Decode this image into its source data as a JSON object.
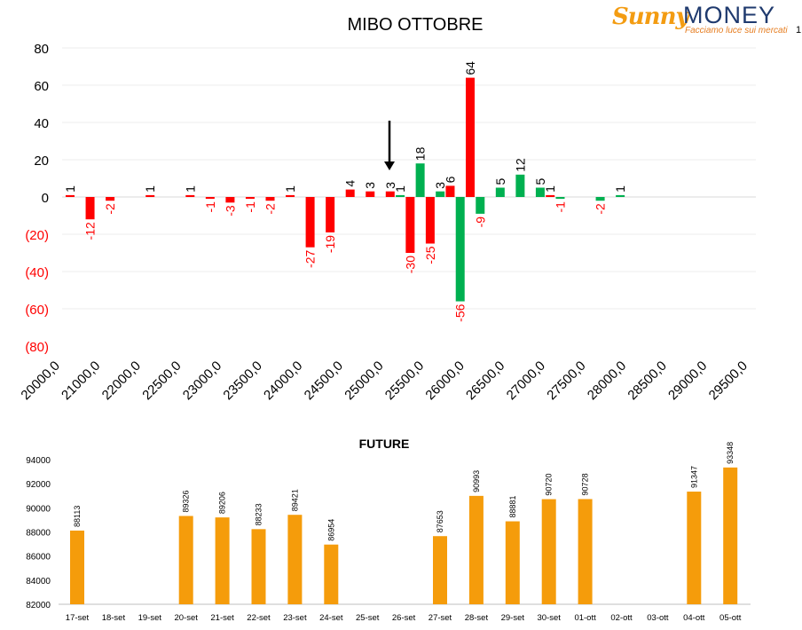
{
  "logo": {
    "brand_sunny": "Sunny",
    "brand_money": "MONEY",
    "tagline": "Facciamo luce sui mercati"
  },
  "page_number": "1",
  "colors": {
    "red": "#ff0000",
    "green": "#00b050",
    "orange": "#f59c0b",
    "negative_label": "#ff0000"
  },
  "chart_data": [
    {
      "type": "bar",
      "title": "MIBO OTTOBRE",
      "ylim": [
        -80,
        80
      ],
      "yticks": [
        "80",
        "60",
        "40",
        "20",
        "0",
        "(20)",
        "(40)",
        "(60)",
        "(80)"
      ],
      "x_tick_labels": [
        "20000,0",
        "21000,0",
        "22000,0",
        "22500,0",
        "23000,0",
        "23500,0",
        "24000,0",
        "24500,0",
        "25000,0",
        "25500,0",
        "26000,0",
        "26500,0",
        "27000,0",
        "27500,0",
        "28000,0",
        "28500,0",
        "29000,0",
        "29500,0"
      ],
      "grid": true,
      "annotation": "arrow pointing down at strike 25000",
      "bars": [
        {
          "i": 0,
          "v": 1,
          "c": "red"
        },
        {
          "i": 1,
          "v": -12,
          "c": "red"
        },
        {
          "i": 2,
          "v": -2,
          "c": "red"
        },
        {
          "i": 4,
          "v": 1,
          "c": "red"
        },
        {
          "i": 6,
          "v": 1,
          "c": "red"
        },
        {
          "i": 7,
          "v": -1,
          "c": "red"
        },
        {
          "i": 8,
          "v": -3,
          "c": "red"
        },
        {
          "i": 9,
          "v": -1,
          "c": "red"
        },
        {
          "i": 10,
          "v": -2,
          "c": "red"
        },
        {
          "i": 11,
          "v": 1,
          "c": "red"
        },
        {
          "i": 12,
          "v": -27,
          "c": "red"
        },
        {
          "i": 13,
          "v": -19,
          "c": "red"
        },
        {
          "i": 14,
          "v": 4,
          "c": "red"
        },
        {
          "i": 15,
          "v": 3,
          "c": "red"
        },
        {
          "i": 16,
          "v": 3,
          "c": "red"
        },
        {
          "i": 16.5,
          "v": 1,
          "c": "green"
        },
        {
          "i": 17,
          "v": -30,
          "c": "red"
        },
        {
          "i": 17.5,
          "v": 18,
          "c": "green"
        },
        {
          "i": 18,
          "v": -25,
          "c": "red"
        },
        {
          "i": 18.5,
          "v": 3,
          "c": "green"
        },
        {
          "i": 19,
          "v": 6,
          "c": "red"
        },
        {
          "i": 19.5,
          "v": -56,
          "c": "green"
        },
        {
          "i": 20,
          "v": 64,
          "c": "red"
        },
        {
          "i": 20.5,
          "v": -9,
          "c": "green"
        },
        {
          "i": 21.5,
          "v": 5,
          "c": "green"
        },
        {
          "i": 22.5,
          "v": 12,
          "c": "green"
        },
        {
          "i": 23.5,
          "v": 5,
          "c": "green"
        },
        {
          "i": 24,
          "v": 1,
          "c": "red"
        },
        {
          "i": 24.5,
          "v": -1,
          "c": "green"
        },
        {
          "i": 26.5,
          "v": -2,
          "c": "green"
        },
        {
          "i": 27.5,
          "v": 1,
          "c": "green"
        }
      ]
    },
    {
      "type": "bar",
      "title": "FUTURE",
      "ylim": [
        82000,
        94000
      ],
      "yticks": [
        "94000",
        "92000",
        "90000",
        "88000",
        "86000",
        "84000",
        "82000"
      ],
      "categories": [
        "17-set",
        "18-set",
        "19-set",
        "20-set",
        "21-set",
        "22-set",
        "23-set",
        "24-set",
        "25-set",
        "26-set",
        "27-set",
        "28-set",
        "29-set",
        "30-set",
        "01-ott",
        "02-ott",
        "03-ott",
        "04-ott",
        "05-ott"
      ],
      "values": [
        88113,
        null,
        null,
        89326,
        89206,
        88233,
        89421,
        86954,
        null,
        null,
        87653,
        90993,
        88881,
        90720,
        90728,
        null,
        null,
        91347,
        93348
      ],
      "labels": [
        "88113",
        "",
        "",
        "89326",
        "89206",
        "88233",
        "89421",
        "86954",
        "",
        "",
        "87653",
        "90993",
        "88881",
        "90720",
        "90728",
        "",
        "",
        "91347",
        "93348"
      ]
    }
  ]
}
